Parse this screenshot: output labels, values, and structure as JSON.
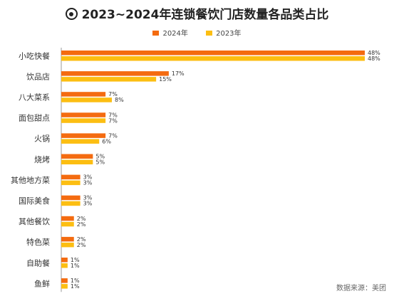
{
  "chart_data": {
    "type": "bar",
    "orientation": "horizontal",
    "title": "2023~2024年连锁餐饮门店数量各品类占比",
    "categories": [
      "小吃快餐",
      "饮品店",
      "八大菜系",
      "面包甜点",
      "火锅",
      "烧烤",
      "其他地方菜",
      "国际美食",
      "其他餐饮",
      "特色菜",
      "自助餐",
      "鱼鲜"
    ],
    "series": [
      {
        "name": "2024年",
        "color": "#F46B10",
        "values": [
          48,
          17,
          7,
          7,
          7,
          5,
          3,
          3,
          2,
          2,
          1,
          1
        ]
      },
      {
        "name": "2023年",
        "color": "#FCBE12",
        "values": [
          48,
          15,
          8,
          7,
          6,
          5,
          3,
          3,
          2,
          2,
          1,
          1
        ]
      }
    ],
    "value_suffix": "%",
    "xlim": [
      0,
      48
    ],
    "legend_position": "top-center",
    "grid": false
  },
  "source_text": "数据来源：美团"
}
